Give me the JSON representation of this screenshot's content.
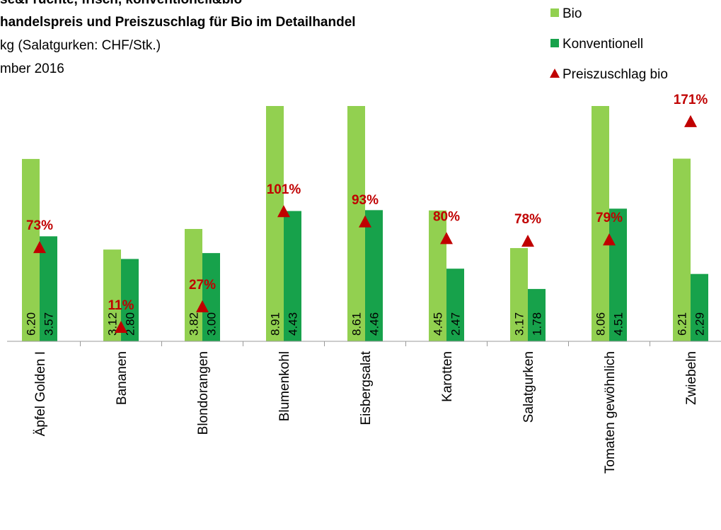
{
  "chart_data": {
    "type": "bar",
    "title_lines": [
      "se&Früchte, frisch, konventionell&bio",
      "handelspreis und Preiszuschlag für Bio im Detailhandel"
    ],
    "subtitle_lines": [
      "kg (Salatgurken: CHF/Stk.)",
      "mber 2016"
    ],
    "categories": [
      "Äpfel Golden I",
      "Bananen",
      "Blondorangen",
      "Blumenkohl",
      "Eisbergsalat",
      "Karotten",
      "Salatgurken",
      "Tomaten gewöhnlich",
      "Zwiebeln"
    ],
    "series": [
      {
        "name": "Bio",
        "color": "#92d050",
        "values": [
          6.2,
          3.12,
          3.82,
          8.91,
          8.61,
          4.45,
          3.17,
          8.06,
          6.21
        ],
        "value_labels": [
          "6.20",
          "3.12",
          "3.82",
          "8.91",
          "8.61",
          "4.45",
          "3.17",
          "8.06",
          "6.21"
        ]
      },
      {
        "name": "Konventionell",
        "color": "#17a24b",
        "values": [
          3.57,
          2.8,
          3.0,
          4.43,
          4.46,
          2.47,
          1.78,
          4.51,
          2.29
        ],
        "value_labels": [
          "3.57",
          "2.80",
          "3.00",
          "4.43",
          "4.46",
          "2.47",
          "1.78",
          "4.51",
          "2.29"
        ]
      },
      {
        "name": "Preiszuschlag bio",
        "type": "scatter",
        "axis": "y2",
        "color": "#c00000",
        "values": [
          73,
          11,
          27,
          101,
          93,
          80,
          78,
          79,
          171
        ],
        "value_labels": [
          "73%",
          "11%",
          "27%",
          "101%",
          "93%",
          "80%",
          "78%",
          "79%",
          "171%"
        ]
      }
    ],
    "ylim": [
      0,
      8
    ],
    "y2lim": [
      0,
      183
    ]
  }
}
